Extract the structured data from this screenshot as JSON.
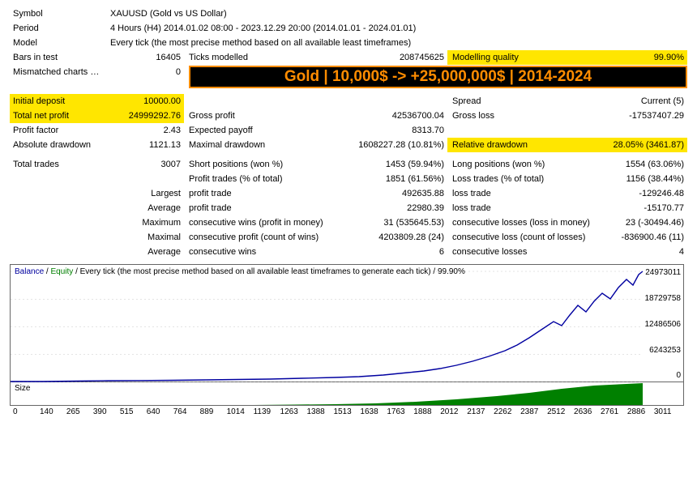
{
  "header": {
    "symbol_label": "Symbol",
    "symbol_value": "XAUUSD (Gold vs US Dollar)",
    "period_label": "Period",
    "period_value": "4 Hours (H4) 2014.01.02 08:00 - 2023.12.29 20:00 (2014.01.01 - 2024.01.01)",
    "model_label": "Model",
    "model_value": "Every tick (the most precise method based on all available least timeframes)",
    "bars_label": "Bars in test",
    "bars_value": "16405",
    "ticks_label": "Ticks modelled",
    "ticks_value": "208745625",
    "mq_label": "Modelling quality",
    "mq_value": "99.90%",
    "mism_label": "Mismatched charts errors",
    "mism_value": "0"
  },
  "banner_text": "Gold | 10,000$ -> +25,000,000$ | 2014-2024",
  "stats": {
    "initial_deposit_l": "Initial deposit",
    "initial_deposit_v": "10000.00",
    "spread_l": "Spread",
    "spread_v": "Current (5)",
    "net_profit_l": "Total net profit",
    "net_profit_v": "24999292.76",
    "gross_profit_l": "Gross profit",
    "gross_profit_v": "42536700.04",
    "gross_loss_l": "Gross loss",
    "gross_loss_v": "-17537407.29",
    "profit_factor_l": "Profit factor",
    "profit_factor_v": "2.43",
    "exp_payoff_l": "Expected payoff",
    "exp_payoff_v": "8313.70",
    "abs_dd_l": "Absolute drawdown",
    "abs_dd_v": "1121.13",
    "max_dd_l": "Maximal drawdown",
    "max_dd_v": "1608227.28 (10.81%)",
    "rel_dd_l": "Relative drawdown",
    "rel_dd_v": "28.05% (3461.87)",
    "total_trades_l": "Total trades",
    "total_trades_v": "3007",
    "short_l": "Short positions (won %)",
    "short_v": "1453 (59.94%)",
    "long_l": "Long positions (won %)",
    "long_v": "1554 (63.06%)",
    "profit_tr_l": "Profit trades (% of total)",
    "profit_tr_v": "1851 (61.56%)",
    "loss_tr_l": "Loss trades (% of total)",
    "loss_tr_v": "1156 (38.44%)",
    "largest_l": "Largest",
    "largest_pt_l": "profit trade",
    "largest_pt_v": "492635.88",
    "largest_lt_l": "loss trade",
    "largest_lt_v": "-129246.48",
    "average_l": "Average",
    "avg_pt_l": "profit trade",
    "avg_pt_v": "22980.39",
    "avg_lt_l": "loss trade",
    "avg_lt_v": "-15170.77",
    "maximum_l": "Maximum",
    "max_cw_l": "consecutive wins (profit in money)",
    "max_cw_v": "31 (535645.53)",
    "max_cl_l": "consecutive losses (loss in money)",
    "max_cl_v": "23 (-30494.46)",
    "maximal_l": "Maximal",
    "maxi_cp_l": "consecutive profit (count of wins)",
    "maxi_cp_v": "4203809.28 (24)",
    "maxi_cl_l": "consecutive loss (count of losses)",
    "maxi_cl_v": "-836900.46 (11)",
    "average2_l": "Average",
    "avg_cw_l": "consecutive wins",
    "avg_cw_v": "6",
    "avg_cl_l": "consecutive losses",
    "avg_cl_v": "4"
  },
  "chart": {
    "legend_balance": "Balance",
    "legend_equity": "Equity",
    "legend_rest": " / Every tick (the most precise method based on all available least timeframes to generate each tick) / 99.90%",
    "size_label": "Size",
    "yticks": [
      "24973011",
      "18729758",
      "12486506",
      "6243253",
      "0"
    ],
    "xticks": [
      "0",
      "140",
      "265",
      "390",
      "515",
      "640",
      "764",
      "889",
      "1014",
      "1139",
      "1263",
      "1388",
      "1513",
      "1638",
      "1763",
      "1888",
      "2012",
      "2137",
      "2262",
      "2387",
      "2512",
      "2636",
      "2761",
      "2886",
      "3011"
    ],
    "balance_color": "#0000a0",
    "equity_color": "#008000",
    "grid_color": "#c8c8c8",
    "size_fill": "#008000",
    "balance_points": [
      [
        0,
        144
      ],
      [
        40,
        144
      ],
      [
        80,
        143.5
      ],
      [
        120,
        143
      ],
      [
        160,
        142.8
      ],
      [
        200,
        142.5
      ],
      [
        240,
        142
      ],
      [
        280,
        141.5
      ],
      [
        320,
        141
      ],
      [
        360,
        140
      ],
      [
        400,
        139
      ],
      [
        430,
        138
      ],
      [
        460,
        136
      ],
      [
        490,
        133
      ],
      [
        510,
        131
      ],
      [
        530,
        128
      ],
      [
        550,
        124
      ],
      [
        570,
        119
      ],
      [
        590,
        113
      ],
      [
        610,
        106
      ],
      [
        625,
        99
      ],
      [
        640,
        90
      ],
      [
        655,
        80
      ],
      [
        670,
        70
      ],
      [
        680,
        75
      ],
      [
        690,
        62
      ],
      [
        700,
        50
      ],
      [
        710,
        58
      ],
      [
        720,
        45
      ],
      [
        730,
        35
      ],
      [
        740,
        42
      ],
      [
        750,
        28
      ],
      [
        760,
        18
      ],
      [
        768,
        25
      ],
      [
        775,
        12
      ],
      [
        780,
        8
      ]
    ],
    "size_points": [
      [
        0,
        28
      ],
      [
        300,
        28
      ],
      [
        350,
        27.5
      ],
      [
        400,
        27
      ],
      [
        450,
        26
      ],
      [
        500,
        24
      ],
      [
        550,
        21
      ],
      [
        600,
        17
      ],
      [
        640,
        13
      ],
      [
        680,
        8
      ],
      [
        720,
        4
      ],
      [
        760,
        2
      ],
      [
        780,
        1
      ]
    ]
  }
}
